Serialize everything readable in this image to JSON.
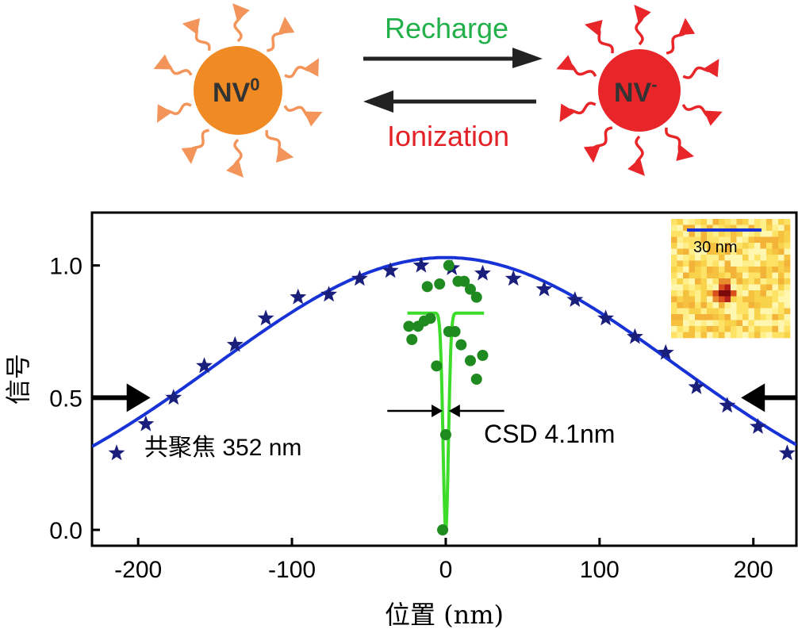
{
  "diagram": {
    "nv0_label": "NV",
    "nv0_superscript": "0",
    "nvminus_label": "NV",
    "nvminus_superscript": "-",
    "recharge_label": "Recharge",
    "ionization_label": "Ionization",
    "colors": {
      "nv0": "#f08a24",
      "nv0_rays": "#f3955a",
      "nvminus": "#e8262a",
      "nvminus_rays": "#e8262a",
      "recharge": "#22b04a",
      "ionization": "#e32227",
      "arrows": "#222222"
    }
  },
  "chart_data": {
    "type": "scatter",
    "xlabel": "位置 (nm)",
    "ylabel": "信号",
    "xlim": [
      -230,
      228
    ],
    "ylim": [
      -0.06,
      1.2
    ],
    "x_ticks": [
      -200,
      -100,
      0,
      100,
      200
    ],
    "x_tick_labels": [
      "-200",
      "-100",
      "0",
      "100",
      "200"
    ],
    "y_ticks": [
      0.0,
      0.5,
      1.0
    ],
    "y_tick_labels": [
      "0.0",
      "0.5",
      "1.0"
    ],
    "series": [
      {
        "marker": "star",
        "color": "#1b1f7c",
        "x": [
          -214,
          -195,
          -177,
          -157,
          -137,
          -117,
          -96,
          -76,
          -56,
          -36,
          -16,
          4,
          24,
          44,
          64,
          84,
          104,
          123,
          143,
          163,
          183,
          203,
          222
        ],
        "y": [
          0.29,
          0.4,
          0.5,
          0.62,
          0.7,
          0.8,
          0.88,
          0.89,
          0.95,
          0.98,
          1.0,
          0.99,
          0.97,
          0.95,
          0.91,
          0.87,
          0.8,
          0.73,
          0.67,
          0.54,
          0.47,
          0.39,
          0.29
        ]
      },
      {
        "marker": "circle",
        "color": "#1f8a1f",
        "x": [
          -12,
          -4,
          2,
          8,
          12,
          16,
          20,
          -24,
          -22,
          -18,
          -14,
          -10,
          -6,
          -2,
          0,
          2,
          6,
          10,
          16,
          20,
          24
        ],
        "y": [
          0.92,
          0.93,
          1.0,
          0.94,
          0.94,
          0.91,
          0.88,
          0.77,
          0.72,
          0.77,
          0.79,
          0.8,
          0.62,
          0.0,
          0.36,
          0.75,
          0.75,
          0.7,
          0.64,
          0.57,
          0.66
        ]
      }
    ],
    "fits": [
      {
        "name": "confocal-fit",
        "color": "#1733d6",
        "type": "gaussian",
        "amplitude": 1.03,
        "center": 0,
        "fwhm": 352
      },
      {
        "name": "csd-fit",
        "color": "#3ddc2a",
        "type": "inverted-gaussian",
        "baseline": 0.82,
        "depth": 0.82,
        "center": 0,
        "fwhm": 4.1,
        "x_range": [
          -25,
          25
        ]
      }
    ],
    "annotations": {
      "confocal_label": "共聚焦 352 nm",
      "csd_label": "CSD 4.1nm",
      "inset_scale_label": "30 nm"
    },
    "annotation_arrows": [
      {
        "name": "left-fwhm-arrow",
        "x_from": -230,
        "x_to": -192,
        "y": 0.5
      },
      {
        "name": "right-fwhm-arrow",
        "x_from": 228,
        "x_to": 192,
        "y": 0.5
      },
      {
        "name": "csd-left-arrow",
        "x_from": -38,
        "x_to": -2,
        "y": 0.45
      },
      {
        "name": "csd-right-arrow",
        "x_from": 38,
        "x_to": 2,
        "y": 0.45
      }
    ]
  }
}
